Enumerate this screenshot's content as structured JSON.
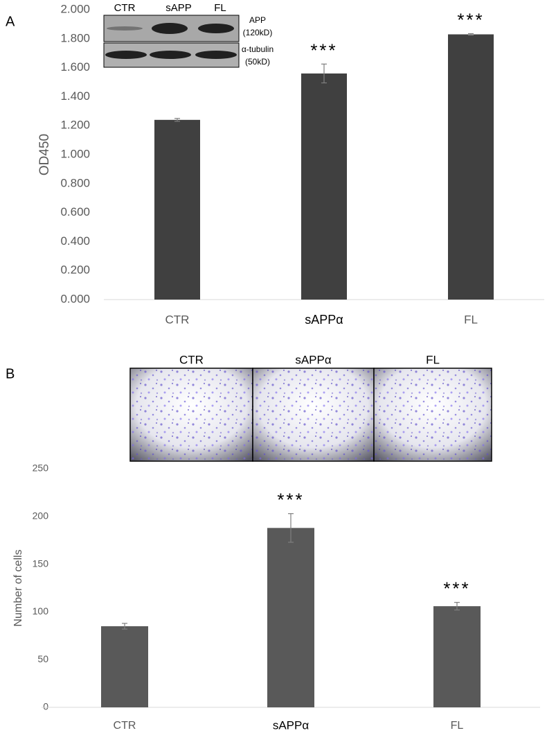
{
  "chart_data": [
    {
      "type": "bar",
      "panel_label": "A",
      "y_label": "OD450",
      "categories": [
        "CTR",
        "sAPPα",
        "FL"
      ],
      "series": [
        {
          "values": [
            1.24,
            1.56,
            1.83
          ],
          "errors": [
            0.01,
            0.065,
            0.005
          ],
          "color": "#404040"
        }
      ],
      "significance": [
        null,
        "***",
        "***"
      ],
      "ylim": [
        0,
        2
      ],
      "yticks": [
        {
          "value": 0,
          "label": "0.000"
        },
        {
          "value": 0.2,
          "label": "0.200"
        },
        {
          "value": 0.4,
          "label": "0.400"
        },
        {
          "value": 0.6,
          "label": "0.600"
        },
        {
          "value": 0.8,
          "label": "0.800"
        },
        {
          "value": 1,
          "label": "1.000"
        },
        {
          "value": 1.2,
          "label": "1.200"
        },
        {
          "value": 1.4,
          "label": "1.400"
        },
        {
          "value": 1.6,
          "label": "1.600"
        },
        {
          "value": 1.8,
          "label": "1.800"
        },
        {
          "value": 2,
          "label": "2.000"
        }
      ],
      "inset": {
        "lane_labels": [
          "CTR",
          "sAPP",
          "FL"
        ],
        "band_labels": [
          "APP",
          "(120kD)",
          "α-tubulin",
          "(50kD)"
        ]
      }
    },
    {
      "type": "bar",
      "panel_label": "B",
      "y_label": "Number of cells",
      "image_labels": [
        "CTR",
        "sAPPα",
        "FL"
      ],
      "categories": [
        "CTR",
        "sAPPα",
        "FL"
      ],
      "series": [
        {
          "values": [
            85,
            188,
            106
          ],
          "errors": [
            3,
            15,
            4
          ],
          "color": "#595959"
        }
      ],
      "significance": [
        null,
        "***",
        "***"
      ],
      "ylim": [
        0,
        250
      ],
      "yticks": [
        0,
        50,
        100,
        150,
        200,
        250
      ]
    }
  ]
}
